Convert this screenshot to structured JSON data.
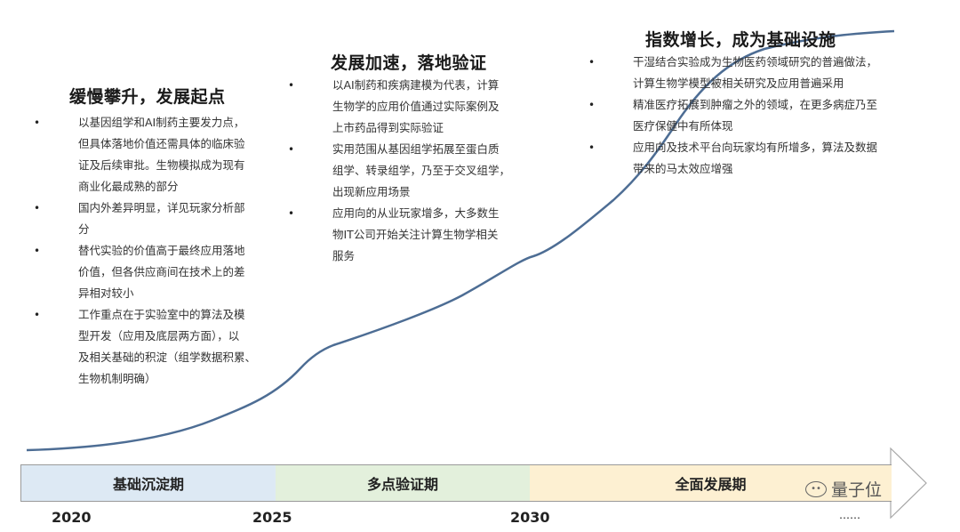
{
  "colors": {
    "curve": "#4d6d94",
    "phase1": "#dde9f4",
    "phase2": "#e3f0dc",
    "phase3": "#fdf0d2"
  },
  "stages": [
    {
      "title": "缓慢攀升，发展起点",
      "bullets": [
        [
          "以基因组学和AI制药主要发力点，",
          "但具体落地价值还需具体的临床验",
          "证及后续审批。生物模拟成为现有",
          "商业化最成熟的部分"
        ],
        [
          "国内外差异明显，详见玩家分析部",
          "分"
        ],
        [
          "替代实验的价值高于最终应用落地",
          "价值，但各供应商间在技术上的差",
          "异相对较小"
        ],
        [
          "工作重点在于实验室中的算法及模",
          "型开发（应用及底层两方面），以",
          "及相关基础的积淀（组学数据积累、",
          "生物机制明确）"
        ]
      ]
    },
    {
      "title": "发展加速，落地验证",
      "bullets": [
        [
          "以AI制药和疾病建模为代表，计算",
          "生物学的应用价值通过实际案例及",
          "上市药品得到实际验证"
        ],
        [
          "实用范围从基因组学拓展至蛋白质",
          "组学、转录组学，乃至于交叉组学，",
          "出现新应用场景"
        ],
        [
          "应用向的从业玩家增多，大多数生",
          "物IT公司开始关注计算生物学相关",
          "服务"
        ]
      ]
    },
    {
      "title": "指数增长，成为基础设施",
      "bullets": [
        [
          "干湿结合实验成为生物医药领域研究的普遍做法，",
          "计算生物学模型被相关研究及应用普遍采用"
        ],
        [
          "精准医疗拓展到肿瘤之外的领域，在更多病症乃至",
          "医疗保健中有所体现"
        ],
        [
          "应用向及技术平台向玩家均有所增多，算法及数据",
          "带来的马太效应增强"
        ]
      ]
    }
  ],
  "timeline": {
    "phases": [
      "基础沉淀期",
      "多点验证期",
      "全面发展期"
    ],
    "years": [
      "2020",
      "2025",
      "2030",
      "……"
    ]
  },
  "bullet_marker": "•",
  "watermark": {
    "text": "量子位",
    "icon": "wechat-icon"
  }
}
